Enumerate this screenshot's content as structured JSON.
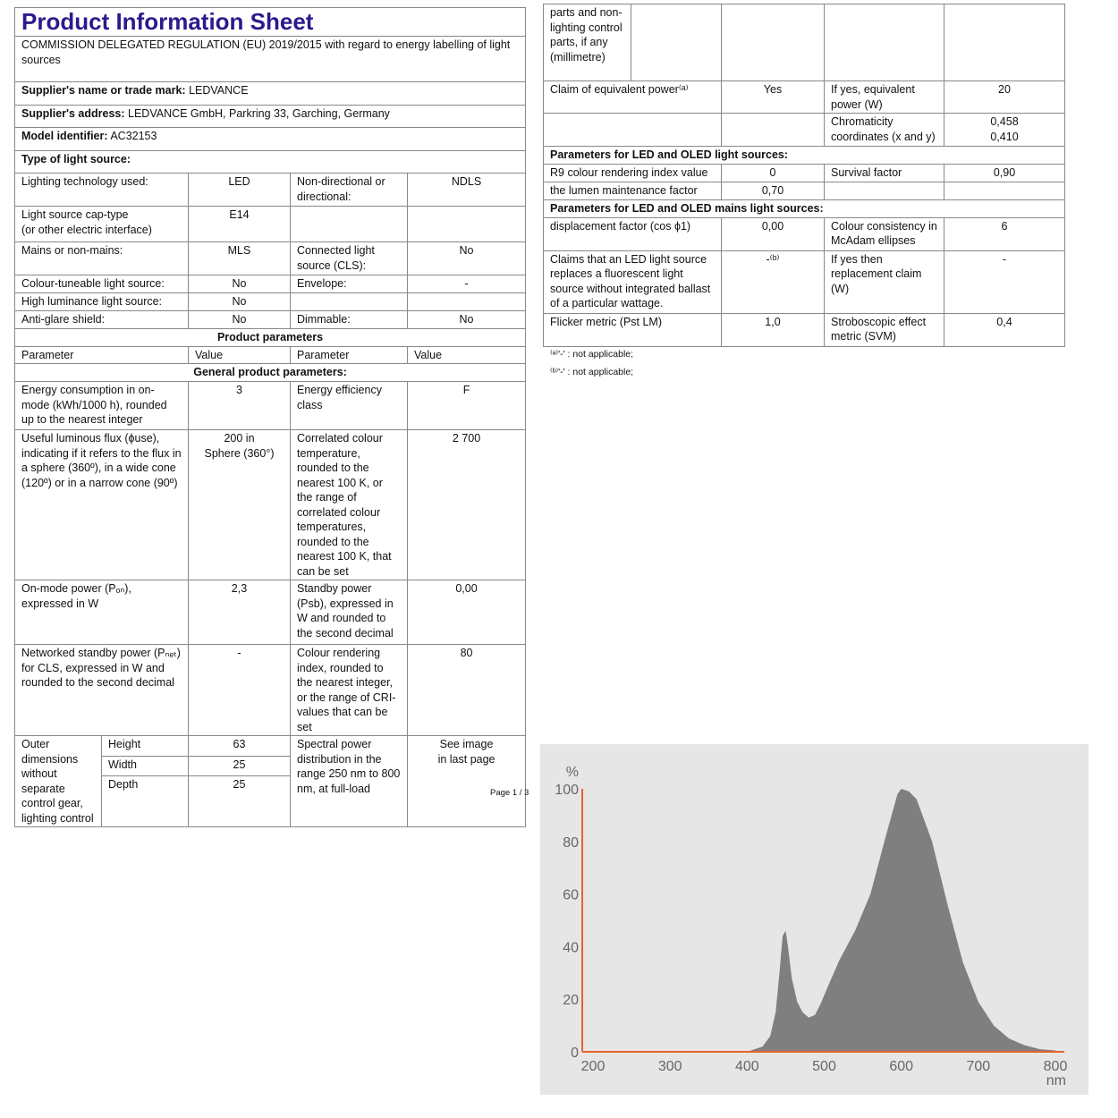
{
  "left_table": {
    "rows": [
      {
        "cells": [
          {
            "t": "Product Information Sheet",
            "cs": 5,
            "cls": "title"
          }
        ]
      },
      {
        "cells": [
          {
            "t": "COMMISSION DELEGATED REGULATION (EU) 2019/2015 with regard to energy labelling of light sources",
            "cs": 5
          }
        ]
      },
      {
        "cells": [
          {
            "lbl": "Supplier's name or trade mark:",
            "t": "LEDVANCE",
            "cs": 5
          }
        ]
      },
      {
        "cells": [
          {
            "lbl": "Supplier's address:",
            "t": "LEDVANCE GmbH, Parkring 33, Garching, Germany",
            "cs": 5
          }
        ]
      },
      {
        "cells": [
          {
            "lbl": "Model identifier:",
            "t": "AC32153",
            "cs": 5
          }
        ]
      },
      {
        "cells": [
          {
            "t": "Type of light source:",
            "cs": 5,
            "cls": "b"
          }
        ]
      },
      {
        "cells": [
          {
            "t": "Lighting technology used:",
            "cs": 2
          },
          {
            "t": "LED",
            "cls": "c"
          },
          {
            "t": "Non-directional or directional:"
          },
          {
            "t": "NDLS",
            "cls": "c"
          }
        ]
      },
      {
        "cells": [
          {
            "t": "Light source cap-type\n(or other electric interface)",
            "cs": 2
          },
          {
            "t": "E14",
            "cls": "c"
          },
          {
            "t": ""
          },
          {
            "t": ""
          }
        ]
      },
      {
        "cells": [
          {
            "t": "Mains or non-mains:",
            "cs": 2
          },
          {
            "t": "MLS",
            "cls": "c"
          },
          {
            "t": "Connected light source (CLS):"
          },
          {
            "t": "No",
            "cls": "c"
          }
        ]
      },
      {
        "cells": [
          {
            "t": "Colour-tuneable light source:",
            "cs": 2
          },
          {
            "t": "No",
            "cls": "c"
          },
          {
            "t": "Envelope:"
          },
          {
            "t": "-",
            "cls": "c"
          }
        ]
      },
      {
        "cells": [
          {
            "t": "High luminance light source:",
            "cs": 2
          },
          {
            "t": "No",
            "cls": "c"
          },
          {
            "t": ""
          },
          {
            "t": ""
          }
        ]
      },
      {
        "cells": [
          {
            "t": "Anti-glare shield:",
            "cs": 2
          },
          {
            "t": "No",
            "cls": "c"
          },
          {
            "t": "Dimmable:"
          },
          {
            "t": "No",
            "cls": "c"
          }
        ]
      },
      {
        "cells": [
          {
            "t": "Product parameters",
            "cs": 5,
            "cls": "b c"
          }
        ]
      },
      {
        "cells": [
          {
            "t": "Parameter",
            "cs": 2
          },
          {
            "t": "Value"
          },
          {
            "t": "Parameter"
          },
          {
            "t": "Value"
          }
        ]
      },
      {
        "cells": [
          {
            "t": "General product parameters:",
            "cs": 5,
            "cls": "b c"
          }
        ]
      },
      {
        "cells": [
          {
            "t": "Energy consumption in on-mode (kWh/1000 h), rounded up to the nearest integer",
            "cs": 2
          },
          {
            "t": "3",
            "cls": "c"
          },
          {
            "t": "Energy efficiency class"
          },
          {
            "t": "F",
            "cls": "c"
          }
        ]
      },
      {
        "cells": [
          {
            "t": "Useful luminous flux (ϕuse), indicating if it refers to the flux in a sphere (360º), in a wide cone (120º) or in a narrow cone (90º)",
            "cs": 2
          },
          {
            "t": "200 in\nSphere (360°)",
            "cls": "c"
          },
          {
            "t": "Correlated colour temperature, rounded to the nearest 100 K, or the range of correlated colour temperatures, rounded to the nearest 100 K, that can be set"
          },
          {
            "t": "2 700",
            "cls": "c"
          }
        ]
      },
      {
        "cells": [
          {
            "t": "On-mode power (Pₒₙ), expressed in W",
            "cs": 2
          },
          {
            "t": "2,3",
            "cls": "c"
          },
          {
            "t": "Standby power (Psb), expressed in W and rounded to the second decimal"
          },
          {
            "t": "0,00",
            "cls": "c"
          }
        ]
      },
      {
        "cells": [
          {
            "t": "Networked standby power (Pₙₑₜ) for CLS, expressed in W and rounded to the second decimal",
            "cs": 2
          },
          {
            "t": "-",
            "cls": "c"
          },
          {
            "t": "Colour rendering index, rounded to the nearest integer, or the range of CRI-values that can be set"
          },
          {
            "t": "80",
            "cls": "c"
          }
        ]
      },
      {
        "cells": [
          {
            "t": "Outer dimensions without separate control gear, lighting control",
            "rs": 3
          },
          {
            "t": "Height"
          },
          {
            "t": "63",
            "cls": "c"
          },
          {
            "t": "Spectral power distribution in the range 250 nm to 800 nm, at full-load",
            "rs": 3
          },
          {
            "t": "See image\nin last page",
            "cls": "c",
            "rs": 3
          }
        ]
      },
      {
        "cells": [
          {
            "t": "Width"
          },
          {
            "t": "25",
            "cls": "c"
          }
        ]
      },
      {
        "cells": [
          {
            "t": "Depth"
          },
          {
            "t": "25",
            "cls": "c"
          }
        ]
      }
    ]
  },
  "page_number": "Page 1 / 3",
  "right_table": {
    "rows": [
      {
        "cells": [
          {
            "t": "parts and non-lighting control parts, if any (millimetre)"
          },
          {
            "t": ""
          },
          {
            "t": ""
          },
          {
            "t": ""
          },
          {
            "t": ""
          }
        ]
      },
      {
        "cells": [
          {
            "t": "Claim of equivalent power⁽ᵃ⁾",
            "cs": 2
          },
          {
            "t": "Yes",
            "cls": "c"
          },
          {
            "t": "If yes, equivalent power (W)"
          },
          {
            "t": "20",
            "cls": "c"
          }
        ]
      },
      {
        "cells": [
          {
            "t": "",
            "cs": 2
          },
          {
            "t": ""
          },
          {
            "t": "Chromaticity coordinates (x and y)"
          },
          {
            "t": "0,458\n0,410",
            "cls": "c"
          }
        ]
      },
      {
        "cells": [
          {
            "t": "Parameters for LED and OLED light sources:",
            "cs": 5,
            "cls": "b"
          }
        ]
      },
      {
        "cells": [
          {
            "t": "R9 colour rendering index value",
            "cs": 2
          },
          {
            "t": "0",
            "cls": "c"
          },
          {
            "t": "Survival factor"
          },
          {
            "t": "0,90",
            "cls": "c"
          }
        ]
      },
      {
        "cells": [
          {
            "t": "the lumen maintenance factor",
            "cs": 2
          },
          {
            "t": "0,70",
            "cls": "c"
          },
          {
            "t": ""
          },
          {
            "t": ""
          }
        ]
      },
      {
        "cells": [
          {
            "t": "Parameters for LED and OLED mains light sources:",
            "cs": 5,
            "cls": "b"
          }
        ]
      },
      {
        "cells": [
          {
            "t": "displacement factor (cos ϕ1)",
            "cs": 2
          },
          {
            "t": "0,00",
            "cls": "c"
          },
          {
            "t": "Colour consistency in McAdam ellipses"
          },
          {
            "t": "6",
            "cls": "c"
          }
        ]
      },
      {
        "cells": [
          {
            "t": "Claims that an LED light source replaces a fluorescent light source without integrated ballast of a particular wattage.",
            "cs": 2
          },
          {
            "t": "-⁽ᵇ⁾",
            "cls": "c"
          },
          {
            "t": "If yes then replacement claim (W)"
          },
          {
            "t": "-",
            "cls": "c"
          }
        ]
      },
      {
        "cells": [
          {
            "t": "Flicker metric (Pst LM)",
            "cs": 2
          },
          {
            "t": "1,0",
            "cls": "c"
          },
          {
            "t": "Stroboscopic effect metric (SVM)"
          },
          {
            "t": "0,4",
            "cls": "c"
          }
        ]
      }
    ]
  },
  "footnotes": [
    "⁽ᵃ⁾'-' : not applicable;",
    "⁽ᵇ⁾'-' : not applicable;"
  ],
  "chart_data": {
    "type": "area",
    "ylabel": "%",
    "xlabel": "nm",
    "xlim": [
      200,
      800
    ],
    "ylim": [
      0,
      100
    ],
    "xticks": [
      200,
      300,
      400,
      500,
      600,
      700,
      800
    ],
    "yticks": [
      0,
      20,
      40,
      60,
      80,
      100
    ],
    "grid": false,
    "x": [
      200,
      400,
      420,
      430,
      437,
      442,
      446,
      450,
      453,
      458,
      465,
      472,
      480,
      488,
      495,
      505,
      520,
      540,
      560,
      580,
      595,
      600,
      610,
      620,
      640,
      660,
      680,
      700,
      720,
      740,
      760,
      780,
      800
    ],
    "y": [
      0,
      0,
      2,
      6,
      15,
      30,
      44,
      46,
      40,
      28,
      19,
      15,
      13,
      14,
      18,
      25,
      35,
      46,
      60,
      82,
      98,
      100,
      99,
      96,
      80,
      56,
      34,
      19,
      10,
      5,
      2.5,
      1,
      0.5
    ],
    "colors": {
      "fill": "#7f7f7f",
      "background": "#e6e6e6",
      "axis": "#e8622c"
    }
  }
}
